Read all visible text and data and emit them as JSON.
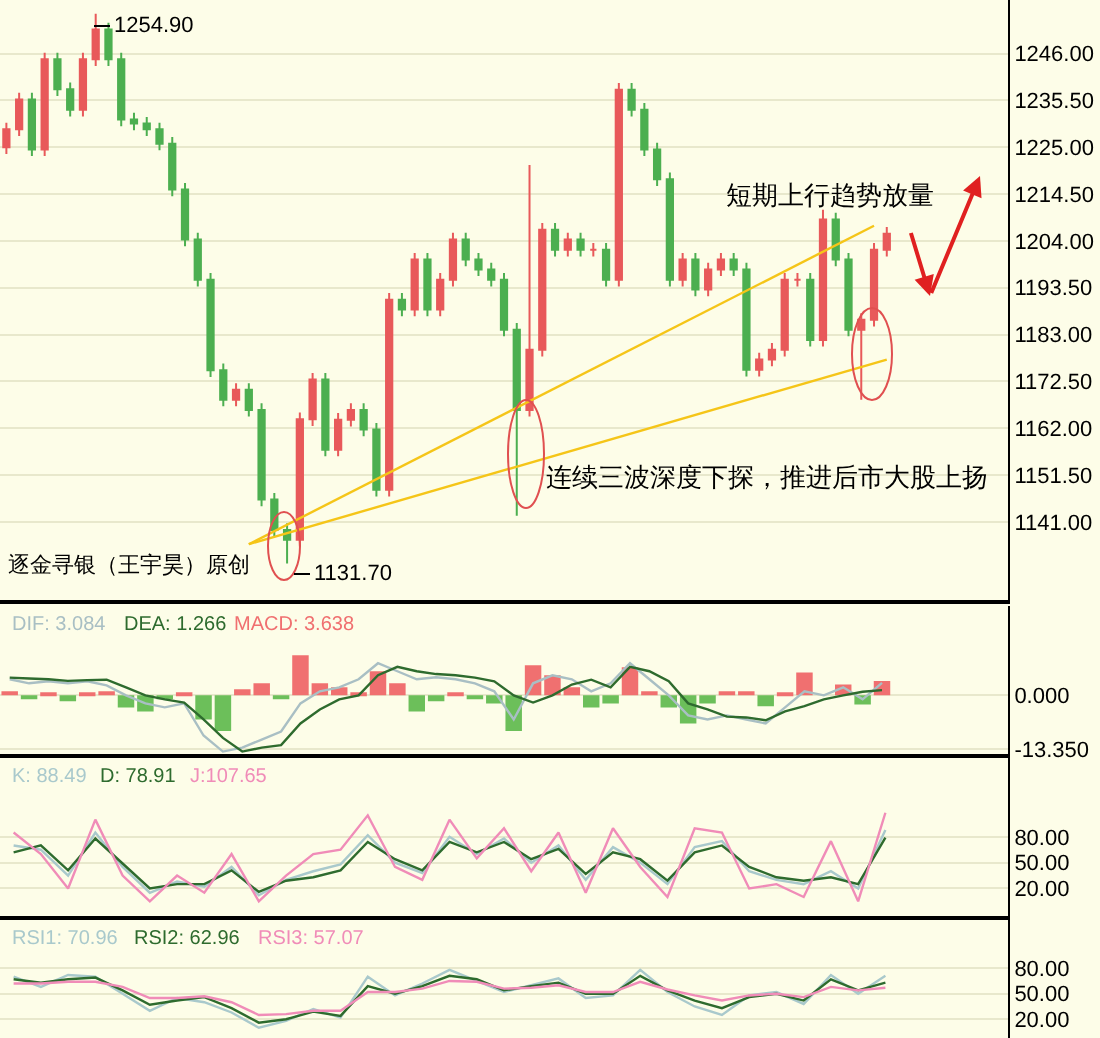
{
  "chart_data": [
    {
      "type": "candlestick",
      "categories": [
        null,
        null,
        null,
        null,
        null,
        null,
        null,
        null,
        null,
        null,
        null,
        null,
        null,
        null,
        null,
        null,
        null,
        null,
        null,
        null,
        null,
        null,
        null,
        null,
        null,
        null,
        null,
        null,
        null,
        null,
        null,
        null,
        null,
        null,
        null,
        null,
        null,
        null,
        null,
        null,
        null,
        null,
        null,
        null,
        null,
        null,
        null,
        null,
        null,
        null,
        null,
        null,
        null,
        null,
        null,
        null,
        null,
        null,
        null,
        null,
        null,
        null,
        null,
        null,
        null,
        null,
        null,
        null,
        null,
        null,
        null,
        null,
        null,
        null,
        null,
        null,
        null,
        null,
        null
      ],
      "ohlc": [
        [
          1225,
          1230.5,
          1223.5,
          1229
        ],
        [
          1229,
          1237.2,
          1227.5,
          1235.7
        ],
        [
          1235.7,
          1237.2,
          1223,
          1224.5
        ],
        [
          1224.5,
          1246.2,
          1223,
          1244.7
        ],
        [
          1244.7,
          1246.2,
          1236.5,
          1238
        ],
        [
          1238,
          1239.5,
          1231.9,
          1233.4
        ],
        [
          1233.4,
          1246.2,
          1231.9,
          1244.7
        ],
        [
          1244.7,
          1254.9,
          1243.2,
          1251.4
        ],
        [
          1251.4,
          1252.9,
          1243.2,
          1244.7
        ],
        [
          1244.7,
          1246.2,
          1229.7,
          1231.2
        ],
        [
          1231.2,
          1232.7,
          1228.8,
          1230.3
        ],
        [
          1230.3,
          1231.8,
          1227.5,
          1229
        ],
        [
          1229,
          1230.5,
          1224.3,
          1225.8
        ],
        [
          1225.8,
          1227.3,
          1214,
          1215.5
        ],
        [
          1215.5,
          1217,
          1202.8,
          1204.3
        ],
        [
          1204.3,
          1205.8,
          1193.8,
          1195.3
        ],
        [
          1195.3,
          1196.8,
          1173.5,
          1175
        ],
        [
          1175,
          1176.5,
          1166.9,
          1168.4
        ],
        [
          1168.4,
          1172.1,
          1166.9,
          1170.6
        ],
        [
          1170.6,
          1172.1,
          1164.6,
          1166.1
        ],
        [
          1166.1,
          1167.6,
          1144.5,
          1146
        ],
        [
          1146,
          1147.5,
          1137.7,
          1139.2
        ],
        [
          1139.2,
          1140.7,
          1131.7,
          1137
        ],
        [
          1137,
          1165.5,
          1135.5,
          1164
        ],
        [
          1164,
          1174.4,
          1162.5,
          1172.9
        ],
        [
          1172.9,
          1174.4,
          1155.7,
          1157.2
        ],
        [
          1157.2,
          1165.4,
          1155.7,
          1163.9
        ],
        [
          1163.9,
          1167.6,
          1162.4,
          1166.1
        ],
        [
          1166.1,
          1167.6,
          1160.2,
          1161.7
        ],
        [
          1161.7,
          1163.2,
          1146.7,
          1148.2
        ],
        [
          1148.2,
          1192.3,
          1146.7,
          1190.8
        ],
        [
          1190.8,
          1192.3,
          1187.1,
          1188.6
        ],
        [
          1188.6,
          1201.3,
          1187.1,
          1199.8
        ],
        [
          1199.8,
          1201.3,
          1187.1,
          1188.6
        ],
        [
          1188.6,
          1196.8,
          1187.1,
          1195.3
        ],
        [
          1195.3,
          1205.8,
          1193.8,
          1204.3
        ],
        [
          1204.3,
          1205.8,
          1198.3,
          1199.8
        ],
        [
          1199.8,
          1201.3,
          1196.1,
          1197.6
        ],
        [
          1197.6,
          1199.1,
          1193.8,
          1195.3
        ],
        [
          1195.3,
          1196.8,
          1182.6,
          1184.1
        ],
        [
          1184.1,
          1185.6,
          1142.4,
          1166.1
        ],
        [
          1166.1,
          1221,
          1164.6,
          1179.6
        ],
        [
          1179.6,
          1208,
          1178.1,
          1206.5
        ],
        [
          1206.5,
          1208,
          1200.5,
          1202
        ],
        [
          1202,
          1205.8,
          1200.5,
          1204.3
        ],
        [
          1204.3,
          1205.8,
          1200.5,
          1202
        ],
        [
          1202,
          1203.5,
          1200.5,
          1202
        ],
        [
          1202,
          1203.5,
          1193.8,
          1195.3
        ],
        [
          1195.3,
          1239.4,
          1193.8,
          1237.9
        ],
        [
          1237.9,
          1239.4,
          1231.9,
          1233.4
        ],
        [
          1233.4,
          1234.9,
          1223,
          1224.5
        ],
        [
          1224.5,
          1226,
          1216.3,
          1217.8
        ],
        [
          1217.8,
          1219.3,
          1193.8,
          1195.3
        ],
        [
          1195.3,
          1201.3,
          1193.8,
          1199.8
        ],
        [
          1199.8,
          1201.3,
          1191.6,
          1193.1
        ],
        [
          1193.1,
          1199.1,
          1191.6,
          1197.6
        ],
        [
          1197.6,
          1201.3,
          1196.1,
          1199.8
        ],
        [
          1199.8,
          1201.3,
          1196.1,
          1197.6
        ],
        [
          1197.6,
          1199.1,
          1173.6,
          1175.1
        ],
        [
          1175.1,
          1178.9,
          1173.6,
          1177.4
        ],
        [
          1177.4,
          1181.1,
          1175.9,
          1179.6
        ],
        [
          1179.6,
          1196.8,
          1178.1,
          1195.3
        ],
        [
          1195.3,
          1196.8,
          1193.8,
          1195.3
        ],
        [
          1195.3,
          1196.8,
          1180.3,
          1181.8
        ],
        [
          1181.8,
          1211,
          1180.3,
          1208.8
        ],
        [
          1208.8,
          1210.3,
          1198.3,
          1199.8
        ],
        [
          1199.8,
          1201.3,
          1182.6,
          1184.1
        ],
        [
          1184.1,
          1187.8,
          1168.4,
          1186.3
        ],
        [
          1186.3,
          1203.5,
          1184.8,
          1202
        ],
        [
          1202,
          1207.1,
          1200.5,
          1205.6
        ],
        null,
        null,
        null,
        null,
        null,
        null,
        null,
        null,
        null
      ],
      "colors": [
        "#e8595a",
        "#e8595a",
        "#4caf50",
        "#e8595a",
        "#4caf50",
        "#4caf50",
        "#e8595a",
        "#e8595a",
        "#4caf50",
        "#4caf50",
        "#4caf50",
        "#4caf50",
        "#4caf50",
        "#4caf50",
        "#4caf50",
        "#4caf50",
        "#4caf50",
        "#4caf50",
        "#e8595a",
        "#4caf50",
        "#4caf50",
        "#4caf50",
        "#4caf50",
        "#e8595a",
        "#e8595a",
        "#4caf50",
        "#e8595a",
        "#e8595a",
        "#4caf50",
        "#4caf50",
        "#e8595a",
        "#4caf50",
        "#e8595a",
        "#4caf50",
        "#e8595a",
        "#e8595a",
        "#4caf50",
        "#4caf50",
        "#4caf50",
        "#4caf50",
        "#4caf50",
        "#e8595a",
        "#e8595a",
        "#4caf50",
        "#e8595a",
        "#4caf50",
        "#e8595a",
        "#4caf50",
        "#e8595a",
        "#4caf50",
        "#4caf50",
        "#4caf50",
        "#4caf50",
        "#e8595a",
        "#4caf50",
        "#e8595a",
        "#e8595a",
        "#4caf50",
        "#4caf50",
        "#e8595a",
        "#e8595a",
        "#e8595a",
        "#e8595a",
        "#4caf50",
        "#e8595a",
        "#4caf50",
        "#4caf50",
        "#e8595a",
        "#e8595a",
        "#e8595a",
        null,
        null,
        null,
        null,
        null,
        null,
        null,
        null,
        null
      ],
      "series": [
        {
          "type": "line",
          "values": [
            null,
            null,
            null,
            null,
            null,
            null,
            null,
            null,
            null,
            null,
            null,
            null,
            null,
            null,
            null,
            null,
            null,
            null,
            null,
            1136,
            null,
            null,
            null,
            null,
            null,
            null,
            null,
            null,
            null,
            null,
            null,
            null,
            null,
            null,
            null,
            null,
            null,
            null,
            null,
            null,
            null,
            null,
            null,
            null,
            null,
            null,
            null,
            null,
            null,
            null,
            null,
            null,
            null,
            null,
            null,
            null,
            null,
            null,
            null,
            null,
            null,
            null,
            null,
            null,
            null,
            null,
            null,
            null,
            1207.4,
            null,
            null,
            null,
            null,
            null,
            null,
            null,
            null,
            null,
            null
          ],
          "color": "#f5c518"
        },
        {
          "type": "line",
          "values": [
            null,
            null,
            null,
            null,
            null,
            null,
            null,
            null,
            null,
            null,
            null,
            null,
            null,
            null,
            null,
            null,
            null,
            null,
            null,
            1136,
            null,
            null,
            null,
            null,
            null,
            null,
            null,
            null,
            null,
            null,
            null,
            null,
            null,
            null,
            null,
            null,
            null,
            null,
            null,
            null,
            null,
            null,
            null,
            null,
            null,
            null,
            null,
            null,
            null,
            null,
            null,
            null,
            null,
            null,
            null,
            null,
            null,
            null,
            null,
            null,
            null,
            null,
            null,
            null,
            null,
            null,
            null,
            null,
            null,
            1177.4,
            null,
            null,
            null,
            null,
            null,
            null,
            null,
            null,
            null
          ],
          "color": "#f5c518"
        }
      ],
      "ylim": [
        1123.5,
        1258
      ],
      "yticks": [
        {
          "value": 1141,
          "label": "1141.00"
        },
        {
          "value": 1151.5,
          "label": "1151.50"
        },
        {
          "value": 1162,
          "label": "1162.00"
        },
        {
          "value": 1172.5,
          "label": "1172.50"
        },
        {
          "value": 1183,
          "label": "1183.00"
        },
        {
          "value": 1193.5,
          "label": "1193.50"
        },
        {
          "value": 1204,
          "label": "1204.00"
        },
        {
          "value": 1214.5,
          "label": "1214.50"
        },
        {
          "value": 1225,
          "label": "1225.00"
        },
        {
          "value": 1235.5,
          "label": "1235.50"
        },
        {
          "value": 1246,
          "label": "1246.00"
        }
      ],
      "grid": "y",
      "tick_labels": "y",
      "annotations": [
        "1254.90",
        "1131.70",
        "短期上行趋势放量",
        "连续三波深度下探，推进后市大股上扬",
        "逐金寻银（王宇昊）原创"
      ]
    },
    {
      "type": "bar",
      "categories": [
        null,
        null,
        null,
        null,
        null,
        null,
        null,
        null,
        null,
        null,
        null,
        null,
        null,
        null,
        null,
        null,
        null,
        null,
        null,
        null,
        null,
        null,
        null,
        null,
        null,
        null,
        null,
        null,
        null,
        null,
        null,
        null,
        null,
        null,
        null,
        null,
        null,
        null,
        null,
        null,
        null,
        null,
        null,
        null,
        null,
        null,
        null,
        null,
        null,
        null,
        null,
        null
      ],
      "series": [
        {
          "name": "DIF: 3.084",
          "type": "line",
          "color": "#a9bfc4",
          "values": [
            4,
            3,
            3.5,
            3,
            3.5,
            2.5,
            0,
            -2,
            -3,
            -2,
            -10,
            -14,
            -13,
            -11,
            -9,
            -2,
            1,
            2,
            4,
            8,
            6,
            4,
            4.5,
            4,
            3,
            1,
            -6,
            3,
            5,
            4,
            1,
            3,
            8,
            4,
            0,
            -5,
            -6,
            -5,
            -6,
            -7,
            -3,
            1,
            0,
            2,
            -1,
            3.1,
            null,
            null,
            null,
            null,
            null,
            null
          ]
        },
        {
          "name": "DEA: 1.266",
          "type": "line",
          "color": "#2e6b2e",
          "values": [
            4.4,
            4.2,
            4,
            3.6,
            3.8,
            3.9,
            2,
            0,
            -1,
            -1.8,
            -6,
            -10.6,
            -14,
            -13,
            -12.4,
            -7,
            -3.5,
            -1,
            0,
            5,
            7.1,
            6,
            5.3,
            5,
            4.4,
            3.5,
            0,
            -1.8,
            0,
            2.7,
            3.9,
            2,
            7.1,
            6,
            3.5,
            -2,
            -3.5,
            -5.3,
            -5.5,
            -6.2,
            -4,
            -2.7,
            -1,
            0,
            0.9,
            1.3,
            null,
            null,
            null,
            null,
            null,
            null
          ]
        },
        {
          "name": "MACD: 3.638",
          "type": "bar",
          "color": "#f07070",
          "values": [
            1,
            -1,
            0.5,
            -1.5,
            0.8,
            1,
            -3,
            -4,
            -1,
            0.5,
            -6,
            -8.9,
            1.5,
            3,
            -1,
            10,
            3,
            2,
            0.3,
            6,
            3,
            -4,
            -1.5,
            0.3,
            -1,
            -2,
            -8.9,
            7.5,
            5,
            2,
            -3,
            -2,
            7,
            1,
            -3,
            -7,
            -2,
            1,
            1,
            -2.7,
            0.5,
            5.7,
            null,
            2.7,
            -2.3,
            3.6,
            null,
            null,
            null,
            null,
            null,
            null
          ],
          "colors": [
            "#f07070",
            "#6cbf5a",
            "#f07070",
            "#6cbf5a",
            "#f07070",
            "#f07070",
            "#6cbf5a",
            "#6cbf5a",
            "#6cbf5a",
            "#f07070",
            "#6cbf5a",
            "#6cbf5a",
            "#f07070",
            "#f07070",
            "#6cbf5a",
            "#f07070",
            "#f07070",
            "#f07070",
            "#f07070",
            "#f07070",
            "#f07070",
            "#6cbf5a",
            "#6cbf5a",
            "#f07070",
            "#6cbf5a",
            "#6cbf5a",
            "#6cbf5a",
            "#f07070",
            "#f07070",
            "#f07070",
            "#6cbf5a",
            "#6cbf5a",
            "#f07070",
            "#f07070",
            "#6cbf5a",
            "#6cbf5a",
            "#6cbf5a",
            "#f07070",
            "#f07070",
            "#6cbf5a",
            "#f07070",
            "#f07070",
            "#f07070",
            "#f07070",
            "#6cbf5a",
            "#f07070",
            null,
            null,
            null,
            null,
            null,
            null
          ]
        }
      ],
      "ylim": [
        -14.5,
        22.2
      ],
      "yticks": [
        {
          "value": -13.35,
          "label": "-13.350"
        },
        {
          "value": 0,
          "label": "0.000"
        }
      ],
      "grid": "y",
      "tick_labels": "y",
      "legend": "top left"
    },
    {
      "type": "line",
      "categories": [
        null,
        null,
        null,
        null,
        null,
        null,
        null,
        null,
        null,
        null,
        null,
        null,
        null,
        null,
        null,
        null,
        null,
        null,
        null,
        null,
        null,
        null,
        null,
        null,
        null,
        null,
        null,
        null,
        null,
        null,
        null,
        null,
        null,
        null,
        null,
        null,
        null
      ],
      "series": [
        {
          "name": "K: 88.49",
          "color": "#a9c9cc",
          "values": [
            70,
            65,
            35,
            85,
            45,
            15,
            28,
            22,
            45,
            12,
            30,
            40,
            48,
            82,
            50,
            38,
            80,
            60,
            78,
            50,
            70,
            30,
            68,
            50,
            25,
            68,
            75,
            40,
            30,
            25,
            40,
            20,
            88,
            null,
            null,
            null,
            null
          ]
        },
        {
          "name": "D: 78.91",
          "color": "#2e6b2e",
          "values": [
            62,
            70,
            41,
            78,
            49,
            20,
            25,
            25,
            41,
            16,
            29,
            33,
            41,
            74,
            54,
            41,
            74,
            62,
            74,
            54,
            66,
            37,
            62,
            54,
            29,
            62,
            70,
            45,
            33,
            29,
            33,
            25,
            79,
            null,
            null,
            null,
            null
          ]
        },
        {
          "name": "J:107.65",
          "color": "#f08cb8",
          "values": [
            85,
            60,
            20,
            100,
            35,
            5,
            35,
            15,
            60,
            5,
            35,
            60,
            65,
            105,
            45,
            30,
            100,
            55,
            90,
            40,
            85,
            15,
            90,
            45,
            10,
            90,
            85,
            20,
            25,
            10,
            75,
            5,
            108,
            null,
            null,
            null,
            null
          ]
        }
      ],
      "ylim": [
        -11.5,
        172
      ],
      "yticks": [
        {
          "value": 20,
          "label": "20.00"
        },
        {
          "value": 50,
          "label": "50.00"
        },
        {
          "value": 80,
          "label": "80.00"
        }
      ],
      "grid": "y",
      "tick_labels": "y",
      "legend": "top left"
    },
    {
      "type": "line",
      "categories": [
        null,
        null,
        null,
        null,
        null,
        null,
        null,
        null,
        null,
        null,
        null,
        null,
        null,
        null,
        null,
        null,
        null,
        null,
        null,
        null,
        null,
        null,
        null,
        null,
        null,
        null,
        null,
        null,
        null,
        null,
        null,
        null,
        null,
        null,
        null,
        null,
        null
      ],
      "series": [
        {
          "name": "RSI1: 70.96",
          "color": "#a9c9cc",
          "values": [
            70,
            58,
            72,
            70,
            50,
            30,
            45,
            40,
            28,
            10,
            18,
            32,
            22,
            70,
            48,
            62,
            78,
            65,
            52,
            60,
            68,
            45,
            48,
            78,
            52,
            35,
            25,
            48,
            52,
            38,
            72,
            50,
            71,
            null,
            null,
            null,
            null
          ]
        },
        {
          "name": "RSI2: 62.96",
          "color": "#2e6b2e",
          "values": [
            67,
            63,
            67,
            69,
            54,
            37,
            42,
            46,
            33,
            16,
            20,
            29,
            24,
            59,
            50,
            59,
            71,
            67,
            54,
            59,
            63,
            50,
            50,
            71,
            54,
            42,
            33,
            46,
            50,
            42,
            67,
            54,
            63,
            null,
            null,
            null,
            null
          ]
        },
        {
          "name": "RSI3: 57.07",
          "color": "#f08cb8",
          "values": [
            62,
            62,
            64,
            64,
            58,
            45,
            45,
            47,
            40,
            25,
            26,
            30,
            30,
            52,
            52,
            56,
            65,
            64,
            56,
            57,
            60,
            52,
            52,
            64,
            55,
            48,
            42,
            48,
            50,
            46,
            58,
            54,
            57,
            null,
            null,
            null,
            null
          ]
        }
      ],
      "ylim": [
        -2,
        137
      ],
      "yticks": [
        {
          "value": 20,
          "label": "20.00"
        },
        {
          "value": 50,
          "label": "50.00"
        },
        {
          "value": 80,
          "label": "80.00"
        }
      ],
      "grid": "y",
      "tick_labels": "y",
      "legend": "top left"
    }
  ]
}
